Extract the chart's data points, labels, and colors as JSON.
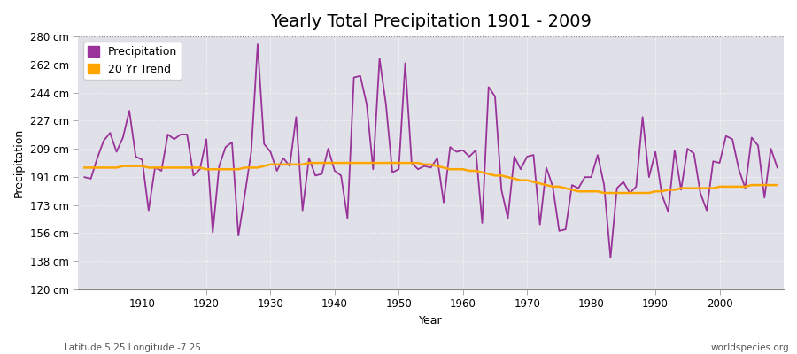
{
  "title": "Yearly Total Precipitation 1901 - 2009",
  "xlabel": "Year",
  "ylabel": "Precipitation",
  "lat_lon_label": "Latitude 5.25 Longitude -7.25",
  "website_label": "worldspecies.org",
  "years": [
    1901,
    1902,
    1903,
    1904,
    1905,
    1906,
    1907,
    1908,
    1909,
    1910,
    1911,
    1912,
    1913,
    1914,
    1915,
    1916,
    1917,
    1918,
    1919,
    1920,
    1921,
    1922,
    1923,
    1924,
    1925,
    1926,
    1927,
    1928,
    1929,
    1930,
    1931,
    1932,
    1933,
    1934,
    1935,
    1936,
    1937,
    1938,
    1939,
    1940,
    1941,
    1942,
    1943,
    1944,
    1945,
    1946,
    1947,
    1948,
    1949,
    1950,
    1951,
    1952,
    1953,
    1954,
    1955,
    1956,
    1957,
    1958,
    1959,
    1960,
    1961,
    1962,
    1963,
    1964,
    1965,
    1966,
    1967,
    1968,
    1969,
    1970,
    1971,
    1972,
    1973,
    1974,
    1975,
    1976,
    1977,
    1978,
    1979,
    1980,
    1981,
    1982,
    1983,
    1984,
    1985,
    1986,
    1987,
    1988,
    1989,
    1990,
    1991,
    1992,
    1993,
    1994,
    1995,
    1996,
    1997,
    1998,
    1999,
    2000,
    2001,
    2002,
    2003,
    2004,
    2005,
    2006,
    2007,
    2008,
    2009
  ],
  "precipitation": [
    191,
    190,
    203,
    214,
    219,
    207,
    216,
    233,
    204,
    202,
    170,
    197,
    195,
    218,
    215,
    218,
    218,
    192,
    196,
    215,
    156,
    198,
    210,
    213,
    154,
    180,
    207,
    275,
    212,
    207,
    195,
    203,
    198,
    229,
    170,
    203,
    192,
    193,
    209,
    195,
    192,
    165,
    254,
    255,
    237,
    196,
    266,
    237,
    194,
    196,
    263,
    200,
    196,
    198,
    197,
    203,
    175,
    210,
    207,
    208,
    204,
    208,
    162,
    248,
    242,
    183,
    165,
    204,
    196,
    204,
    205,
    161,
    197,
    185,
    157,
    158,
    186,
    184,
    191,
    191,
    205,
    186,
    140,
    184,
    188,
    181,
    185,
    229,
    191,
    207,
    180,
    169,
    208,
    183,
    209,
    206,
    181,
    170,
    201,
    200,
    217,
    215,
    196,
    184,
    216,
    211,
    178,
    209,
    197
  ],
  "trend": [
    197,
    197,
    197,
    197,
    197,
    197,
    198,
    198,
    198,
    198,
    197,
    197,
    197,
    197,
    197,
    197,
    197,
    197,
    197,
    196,
    196,
    196,
    196,
    196,
    196,
    197,
    197,
    197,
    198,
    199,
    199,
    199,
    199,
    199,
    199,
    200,
    200,
    200,
    200,
    200,
    200,
    200,
    200,
    200,
    200,
    200,
    200,
    200,
    200,
    200,
    200,
    200,
    200,
    199,
    199,
    198,
    197,
    196,
    196,
    196,
    195,
    195,
    194,
    193,
    192,
    192,
    191,
    190,
    189,
    189,
    188,
    187,
    186,
    185,
    185,
    184,
    183,
    182,
    182,
    182,
    182,
    181,
    181,
    181,
    181,
    181,
    181,
    181,
    181,
    182,
    182,
    183,
    183,
    184,
    184,
    184,
    184,
    184,
    184,
    185,
    185,
    185,
    185,
    185,
    186,
    186,
    186,
    186,
    186
  ],
  "ylim": [
    120,
    280
  ],
  "yticks": [
    120,
    138,
    156,
    173,
    191,
    209,
    227,
    244,
    262,
    280
  ],
  "ytick_labels": [
    "120 cm",
    "138 cm",
    "156 cm",
    "173 cm",
    "191 cm",
    "209 cm",
    "227 cm",
    "244 cm",
    "262 cm",
    "280 cm"
  ],
  "xticks": [
    1910,
    1920,
    1930,
    1940,
    1950,
    1960,
    1970,
    1980,
    1990,
    2000
  ],
  "xlim": [
    1900,
    2010
  ],
  "precipitation_color": "#993399",
  "trend_color": "#FFA500",
  "figure_bg_color": "#ffffff",
  "plot_bg_color": "#e0e0e8",
  "grid_color": "#ffffff",
  "title_fontsize": 14,
  "label_fontsize": 9,
  "tick_fontsize": 8.5
}
